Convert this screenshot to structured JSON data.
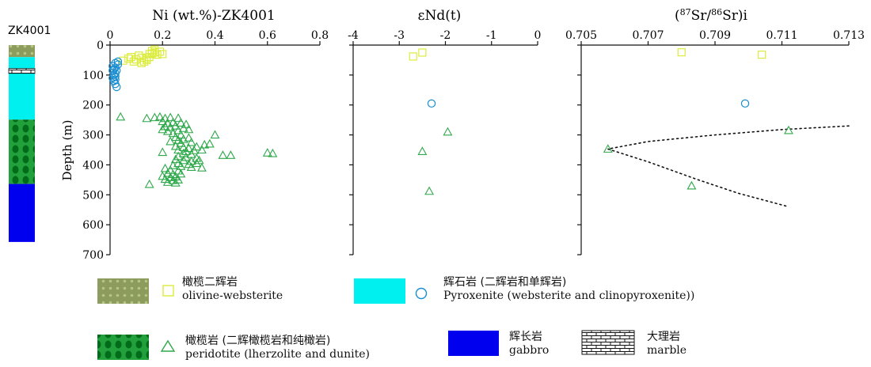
{
  "column": {
    "label": "ZK4001",
    "intervals": [
      {
        "rock": "olivine-websterite",
        "top": 0,
        "bottom": 40
      },
      {
        "rock": "pyroxenite",
        "top": 40,
        "bottom": 78
      },
      {
        "rock": "marble",
        "top": 78,
        "bottom": 95
      },
      {
        "rock": "pyroxenite",
        "top": 95,
        "bottom": 248
      },
      {
        "rock": "peridotite",
        "top": 248,
        "bottom": 462
      },
      {
        "rock": "gabbro",
        "top": 462,
        "bottom": 655
      }
    ]
  },
  "colors": {
    "olivine_websterite": "#8c9c5c",
    "pyroxenite": "#00f0f0",
    "peridotite": "#21a03c",
    "peridotite_dot": "#006b18",
    "gabbro": "#0000ee",
    "olivine_marker": "#dcec3c",
    "pyroxenite_marker": "#1a8ed0",
    "peridotite_marker": "#2ea84a"
  },
  "chart_data": [
    {
      "type": "scatter",
      "title": "Ni (wt.%)-ZK4001",
      "ylabel": "Depth (m)",
      "xlim": [
        0,
        0.8
      ],
      "xticks": [
        "0",
        "0.2",
        "0.4",
        "0.6",
        "0.8"
      ],
      "ylim": [
        0,
        700
      ],
      "yticks": [
        "0",
        "100",
        "200",
        "300",
        "400",
        "500",
        "600",
        "700"
      ],
      "series": [
        {
          "rock": "olivine-websterite",
          "marker": "square",
          "points": [
            [
              0.05,
              52
            ],
            [
              0.07,
              45
            ],
            [
              0.08,
              40
            ],
            [
              0.09,
              55
            ],
            [
              0.1,
              48
            ],
            [
              0.11,
              35
            ],
            [
              0.12,
              42
            ],
            [
              0.13,
              55
            ],
            [
              0.14,
              50
            ],
            [
              0.15,
              40
            ],
            [
              0.15,
              30
            ],
            [
              0.16,
              28
            ],
            [
              0.16,
              20
            ],
            [
              0.17,
              25
            ],
            [
              0.17,
              15
            ],
            [
              0.18,
              32
            ],
            [
              0.19,
              22
            ],
            [
              0.2,
              30
            ],
            [
              0.12,
              60
            ],
            [
              0.14,
              45
            ]
          ]
        },
        {
          "rock": "pyroxenite",
          "marker": "circle",
          "points": [
            [
              0.02,
              60
            ],
            [
              0.03,
              65
            ],
            [
              0.01,
              70
            ],
            [
              0.02,
              75
            ],
            [
              0.015,
              80
            ],
            [
              0.01,
              85
            ],
            [
              0.02,
              95
            ],
            [
              0.015,
              100
            ],
            [
              0.02,
              105
            ],
            [
              0.01,
              110
            ],
            [
              0.02,
              115
            ],
            [
              0.015,
              120
            ],
            [
              0.02,
              130
            ],
            [
              0.025,
              140
            ],
            [
              0.03,
              55
            ],
            [
              0.025,
              85
            ]
          ]
        },
        {
          "rock": "peridotite",
          "marker": "triangle",
          "points": [
            [
              0.04,
              240
            ],
            [
              0.14,
              245
            ],
            [
              0.17,
              242
            ],
            [
              0.19,
              240
            ],
            [
              0.21,
              245
            ],
            [
              0.23,
              242
            ],
            [
              0.26,
              244
            ],
            [
              0.2,
              255
            ],
            [
              0.22,
              262
            ],
            [
              0.24,
              258
            ],
            [
              0.27,
              260
            ],
            [
              0.29,
              265
            ],
            [
              0.21,
              272
            ],
            [
              0.23,
              275
            ],
            [
              0.25,
              270
            ],
            [
              0.28,
              278
            ],
            [
              0.2,
              282
            ],
            [
              0.22,
              288
            ],
            [
              0.26,
              285
            ],
            [
              0.3,
              282
            ],
            [
              0.4,
              300
            ],
            [
              0.24,
              295
            ],
            [
              0.27,
              300
            ],
            [
              0.25,
              308
            ],
            [
              0.28,
              315
            ],
            [
              0.3,
              310
            ],
            [
              0.26,
              318
            ],
            [
              0.23,
              322
            ],
            [
              0.27,
              328
            ],
            [
              0.31,
              325
            ],
            [
              0.36,
              333
            ],
            [
              0.38,
              330
            ],
            [
              0.25,
              338
            ],
            [
              0.28,
              342
            ],
            [
              0.3,
              345
            ],
            [
              0.33,
              340
            ],
            [
              0.26,
              350
            ],
            [
              0.29,
              355
            ],
            [
              0.32,
              352
            ],
            [
              0.35,
              350
            ],
            [
              0.2,
              358
            ],
            [
              0.28,
              362
            ],
            [
              0.31,
              365
            ],
            [
              0.43,
              368
            ],
            [
              0.46,
              368
            ],
            [
              0.6,
              360
            ],
            [
              0.62,
              362
            ],
            [
              0.26,
              372
            ],
            [
              0.29,
              375
            ],
            [
              0.33,
              378
            ],
            [
              0.25,
              382
            ],
            [
              0.28,
              385
            ],
            [
              0.31,
              388
            ],
            [
              0.34,
              385
            ],
            [
              0.26,
              395
            ],
            [
              0.3,
              398
            ],
            [
              0.33,
              395
            ],
            [
              0.24,
              402
            ],
            [
              0.27,
              405
            ],
            [
              0.31,
              408
            ],
            [
              0.35,
              410
            ],
            [
              0.21,
              412
            ],
            [
              0.23,
              418
            ],
            [
              0.26,
              420
            ],
            [
              0.22,
              428
            ],
            [
              0.24,
              432
            ],
            [
              0.27,
              430
            ],
            [
              0.2,
              438
            ],
            [
              0.23,
              442
            ],
            [
              0.25,
              440
            ],
            [
              0.21,
              448
            ],
            [
              0.24,
              452
            ],
            [
              0.26,
              450
            ],
            [
              0.22,
              458
            ],
            [
              0.15,
              465
            ],
            [
              0.25,
              460
            ]
          ]
        }
      ]
    },
    {
      "type": "scatter",
      "title": "εNd(t)",
      "xlim": [
        -4,
        0
      ],
      "xticks": [
        "-4",
        "-3",
        "-2",
        "-1",
        "0"
      ],
      "ylim": [
        0,
        700
      ],
      "series": [
        {
          "rock": "olivine-websterite",
          "marker": "square",
          "points": [
            [
              -2.5,
              25
            ],
            [
              -2.7,
              38
            ]
          ]
        },
        {
          "rock": "pyroxenite",
          "marker": "circle",
          "points": [
            [
              -2.3,
              195
            ]
          ]
        },
        {
          "rock": "peridotite",
          "marker": "triangle",
          "points": [
            [
              -1.95,
              290
            ],
            [
              -2.5,
              355
            ],
            [
              -2.35,
              488
            ]
          ]
        }
      ]
    },
    {
      "type": "scatter",
      "title": "(87Sr/86Sr)i",
      "xlim": [
        0.705,
        0.713
      ],
      "xticks": [
        "0.705",
        "0.707",
        "0.709",
        "0.711",
        "0.713"
      ],
      "ylim": [
        0,
        700
      ],
      "series": [
        {
          "rock": "olivine-websterite",
          "marker": "square",
          "points": [
            [
              0.708,
              24
            ],
            [
              0.7104,
              32
            ]
          ]
        },
        {
          "rock": "pyroxenite",
          "marker": "circle",
          "points": [
            [
              0.7099,
              195
            ]
          ]
        },
        {
          "rock": "peridotite",
          "marker": "triangle",
          "points": [
            [
              0.7112,
              285
            ],
            [
              0.7058,
              347
            ],
            [
              0.7083,
              470
            ]
          ]
        }
      ],
      "trend_curve": [
        [
          0.713,
          270
        ],
        [
          0.711,
          282
        ],
        [
          0.709,
          300
        ],
        [
          0.707,
          322
        ],
        [
          0.7058,
          347
        ],
        [
          0.707,
          390
        ],
        [
          0.7085,
          450
        ],
        [
          0.7097,
          495
        ],
        [
          0.7112,
          540
        ]
      ]
    }
  ],
  "legend": [
    {
      "rock": "olivine-websterite",
      "marker": "square",
      "zh": "橄榄二辉岩",
      "en": "olivine-websterite"
    },
    {
      "rock": "pyroxenite",
      "marker": "circle",
      "zh": "辉石岩 (二辉岩和单辉岩)",
      "en": "Pyroxenite (websterite and clinopyroxenite))"
    },
    {
      "rock": "peridotite",
      "marker": "triangle",
      "zh": "橄榄岩 (二辉橄榄岩和纯橄岩)",
      "en": "peridotite (lherzolite and dunite)"
    },
    {
      "rock": "gabbro",
      "marker": "",
      "zh": "辉长岩",
      "en": "gabbro"
    },
    {
      "rock": "marble",
      "marker": "",
      "zh": "大理岩",
      "en": "marble"
    }
  ]
}
